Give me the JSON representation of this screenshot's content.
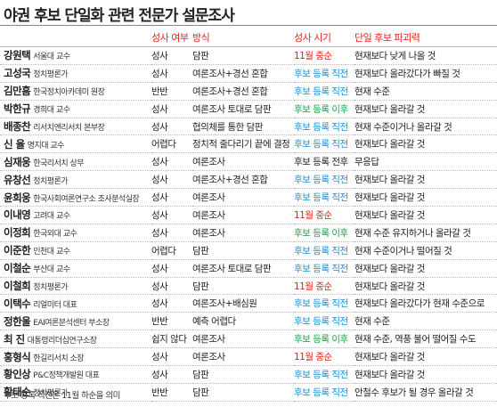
{
  "title": "야권 후보 단일화 관련 전문가 설문조사",
  "table": {
    "headers": [
      "성사 여부",
      "방식",
      "성사 시기",
      "단일 후보 파괴력"
    ],
    "rows": [
      {
        "name": "강원택",
        "affiliation": "서울대 교수",
        "success": "성사",
        "method": "담판",
        "timing": "11월 중순",
        "timing_color": "#e2231a",
        "impact": "현재보다 낮게 나올 것"
      },
      {
        "name": "고성국",
        "affiliation": "정치평론가",
        "success": "성사",
        "method": "여론조사+경선 혼합",
        "timing": "후보 등록 직전",
        "timing_color": "#1a8fd0",
        "impact": "현재보다 올라갔다가 빠질 것"
      },
      {
        "name": "김만흠",
        "affiliation": "한국정치아카데미 원장",
        "success": "반반",
        "method": "여론조사+경선 혼합",
        "timing": "후보 등록 직전",
        "timing_color": "#1a8fd0",
        "impact": "현재 수준"
      },
      {
        "name": "박한규",
        "affiliation": "경희대 교수",
        "success": "성사",
        "method": "여론조사 토대로 담판",
        "timing": "후보 등록 이후",
        "timing_color": "#1a9e4a",
        "impact": "현재보다 올라갈 것"
      },
      {
        "name": "배종찬",
        "affiliation": "리서치앤리서치 본부장",
        "success": "성사",
        "method": "협의체를 통한 담판",
        "timing": "후보 등록 직전",
        "timing_color": "#1a8fd0",
        "impact": "현재 수준이거나 올라갈 것"
      },
      {
        "name": "신 율",
        "affiliation": "명지대 교수",
        "success": "어렵다",
        "method": "정치적 줄다리기 끝에 결정",
        "timing": "후보 등록 직전",
        "timing_color": "#1a8fd0",
        "impact": "현재보다 올라갈 것"
      },
      {
        "name": "심재웅",
        "affiliation": "한국리서치 상무",
        "success": "성사",
        "method": "여론조사",
        "timing": "후보 등록 전후",
        "timing_color": "#222222",
        "impact": "무응답"
      },
      {
        "name": "유창선",
        "affiliation": "정치평론가",
        "success": "성사",
        "method": "여론조사+경선 혼합",
        "timing": "후보 등록 직전",
        "timing_color": "#1a8fd0",
        "impact": "현재보다 올라갈 것"
      },
      {
        "name": "윤희웅",
        "affiliation": "한국사회여론연구소 조사분석실장",
        "success": "성사",
        "method": "여론조사",
        "timing": "후보 등록 직전",
        "timing_color": "#1a8fd0",
        "impact": "현재보다 올라갈 것"
      },
      {
        "name": "이내영",
        "affiliation": "고려대 교수",
        "success": "성사",
        "method": "여론조사",
        "timing": "11월 중순",
        "timing_color": "#e2231a",
        "impact": "현재보다 올라갈 것"
      },
      {
        "name": "이정희",
        "affiliation": "한국외대 교수",
        "success": "성사",
        "method": "여론조사",
        "timing": "후보 등록 이후",
        "timing_color": "#1a9e4a",
        "impact": "현재 수준 유지하거나 올라갈 것"
      },
      {
        "name": "이준한",
        "affiliation": "인천대 교수",
        "success": "어렵다",
        "method": "담판",
        "timing": "후보 등록 직전",
        "timing_color": "#1a8fd0",
        "impact": "현재 수준이거나 떨어질 것"
      },
      {
        "name": "이철순",
        "affiliation": "부산대 교수",
        "success": "성사",
        "method": "여론조사 토대로 담판",
        "timing": "후보 등록 직전",
        "timing_color": "#1a8fd0",
        "impact": "현재보다 올라갈 것"
      },
      {
        "name": "이철희",
        "affiliation": "정치평론가",
        "success": "성사",
        "method": "담판",
        "timing": "11월 중순",
        "timing_color": "#e2231a",
        "impact": "현재보다 올라갈 것"
      },
      {
        "name": "이택수",
        "affiliation": "리얼미터 대표",
        "success": "성사",
        "method": "여론조사+배심원",
        "timing": "후보 등록 직전",
        "timing_color": "#1a8fd0",
        "impact": "현재보다 올라갔다가 현재 수준으로"
      },
      {
        "name": "정한울",
        "affiliation": "EAI여론분석센터 부소장",
        "success": "반반",
        "method": "예측 어렵다",
        "timing": "후보 등록 직전",
        "timing_color": "#1a8fd0",
        "impact": "현재 수준"
      },
      {
        "name": "최 진",
        "affiliation": "대통령리더십연구소장",
        "success": "쉽지 않다",
        "method": "여론조사",
        "timing": "후보 등록 이후",
        "timing_color": "#1a9e4a",
        "impact": "현재 수준, 역풍 불어 떨어질 수도"
      },
      {
        "name": "홍형식",
        "affiliation": "한길리서치 소장",
        "success": "성사",
        "method": "여론조사",
        "timing": "11월 중순",
        "timing_color": "#e2231a",
        "impact": "현재보다 올라갈 것"
      },
      {
        "name": "황인상",
        "affiliation": "P&C정책개발원 대표",
        "success": "성사",
        "method": "담판",
        "timing": "후보 등록 직전",
        "timing_color": "#1a8fd0",
        "impact": "현재보다 올라갈 것"
      },
      {
        "name": "황태순",
        "affiliation": "정치평론가",
        "success": "반반",
        "method": "담판",
        "timing": "후보 등록 직전",
        "timing_color": "#1a8fd0",
        "impact": "안철수 후보가 될 경우 올라갈 것"
      }
    ]
  },
  "footnote": "후보 등록 직전은 11월 하순을 의미"
}
